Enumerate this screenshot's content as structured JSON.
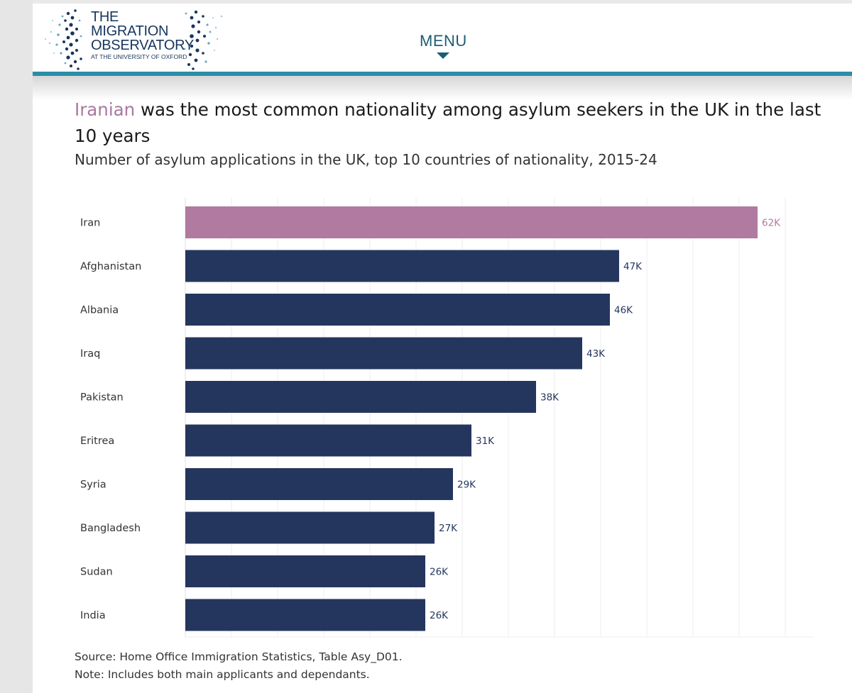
{
  "header": {
    "logo_lines": [
      "THE",
      "MIGRATION",
      "OBSERVATORY"
    ],
    "logo_subline": "AT THE UNIVERSITY OF OXFORD",
    "menu_label": "MENU"
  },
  "chart_data": {
    "type": "bar",
    "orientation": "horizontal",
    "title_highlight": "Iranian",
    "title_rest": " was the most common nationality among asylum seekers in the UK in the last 10 years",
    "subtitle": "Number of asylum applications in the UK, top 10 countries of nationality, 2015-24",
    "categories": [
      "Iran",
      "Afghanistan",
      "Albania",
      "Iraq",
      "Pakistan",
      "Eritrea",
      "Syria",
      "Bangladesh",
      "Sudan",
      "India"
    ],
    "values": [
      62,
      47,
      46,
      43,
      38,
      31,
      29,
      27,
      26,
      26
    ],
    "value_labels": [
      "62K",
      "47K",
      "46K",
      "43K",
      "38K",
      "31K",
      "29K",
      "27K",
      "26K",
      "26K"
    ],
    "value_unit": "thousand applications",
    "highlight_category": "Iran",
    "colors": {
      "highlight": "#b07aa1",
      "default": "#25365e",
      "grid": "#ececec"
    },
    "xlim": [
      0,
      65
    ],
    "grid": true,
    "source": "Source: Home Office Immigration Statistics, Table Asy_D01.",
    "note": "Note: Includes both main applicants and dependants."
  }
}
